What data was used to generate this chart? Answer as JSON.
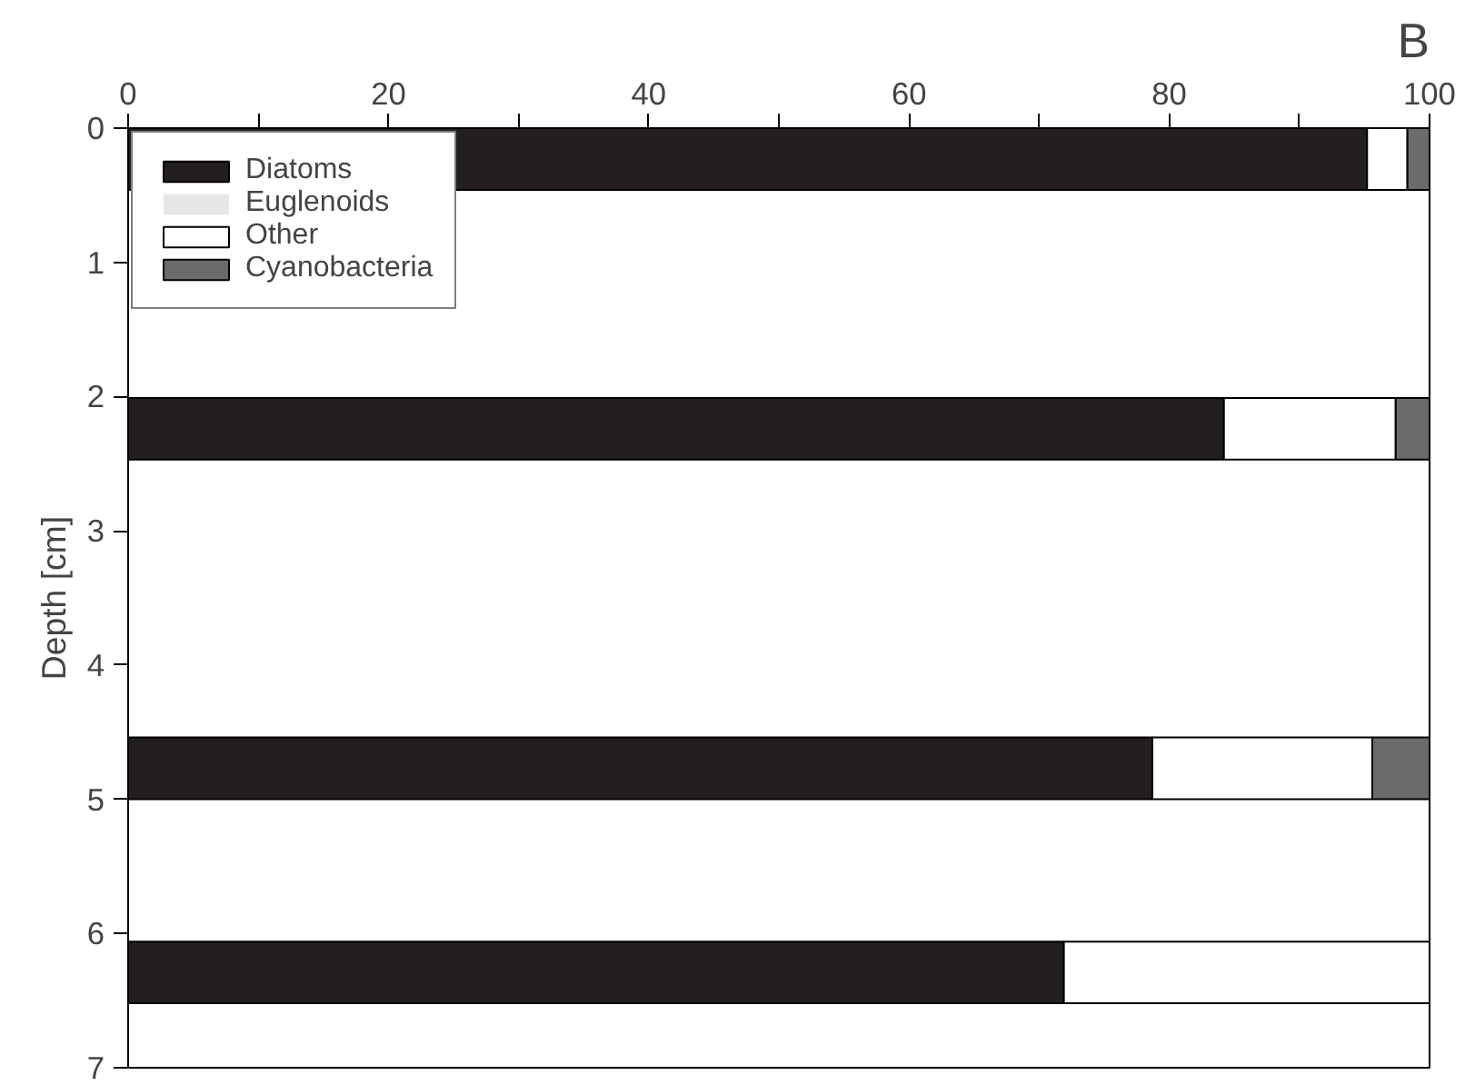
{
  "chart_data": {
    "type": "bar",
    "orientation": "horizontal",
    "stacked": true,
    "title": "B",
    "ylabel": "Depth [cm]",
    "x": [
      0.23,
      2.24,
      4.77,
      6.29
    ],
    "series": [
      {
        "name": "Diatoms",
        "color": "#231f20",
        "values": [
          95.2,
          84.2,
          78.7,
          71.9
        ]
      },
      {
        "name": "Euglenoids",
        "color": "#e6e6e6",
        "values": [
          0,
          0,
          0,
          0
        ]
      },
      {
        "name": "Other",
        "color": "#ffffff",
        "values": [
          3.1,
          13.2,
          16.9,
          28.1
        ]
      },
      {
        "name": "Cyanobacteria",
        "color": "#6b6b6b",
        "values": [
          1.7,
          2.6,
          4.4,
          0
        ]
      }
    ],
    "xlim": [
      0,
      100
    ],
    "xticks": [
      0,
      {
        "value": 10,
        "label": null
      },
      20,
      {
        "value": 30,
        "label": null
      },
      40,
      {
        "value": 50,
        "label": null
      },
      60,
      {
        "value": 70,
        "label": null
      },
      80,
      {
        "value": 90,
        "label": null
      },
      100
    ],
    "ylim": [
      7,
      0
    ],
    "yticks": [
      0,
      1,
      2,
      3,
      4,
      5,
      6,
      7
    ],
    "grid": false,
    "legend": "top left"
  }
}
